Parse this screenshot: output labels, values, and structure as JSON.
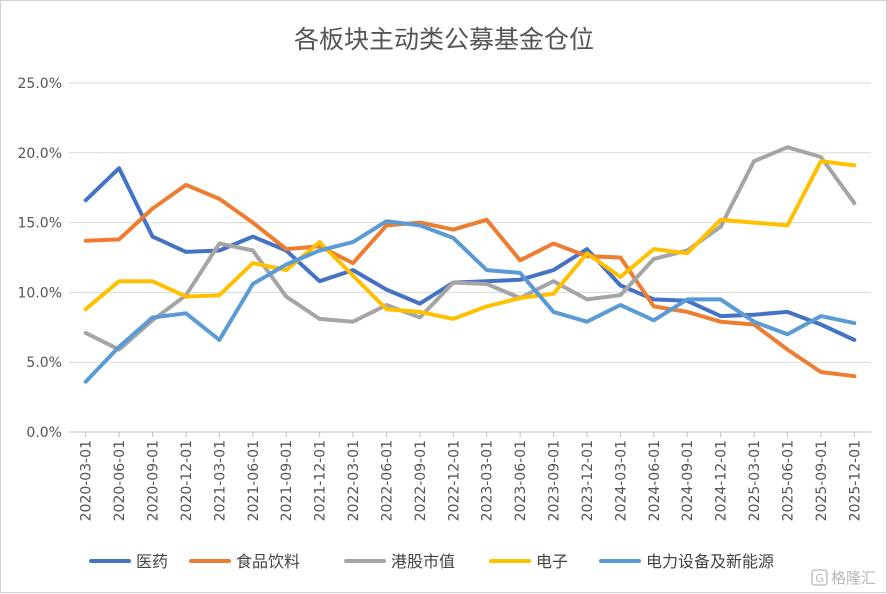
{
  "chart_data": {
    "type": "line",
    "title": "各板块主动类公募基金仓位",
    "xlabel": "",
    "ylabel": "",
    "ylim": [
      0,
      25
    ],
    "yticks": [
      "0.0%",
      "5.0%",
      "10.0%",
      "15.0%",
      "20.0%",
      "25.0%"
    ],
    "grid": true,
    "legend_position": "bottom",
    "x": [
      "2020-03-01",
      "2020-06-01",
      "2020-09-01",
      "2020-12-01",
      "2021-03-01",
      "2021-06-01",
      "2021-09-01",
      "2021-12-01",
      "2022-03-01",
      "2022-06-01",
      "2022-09-01",
      "2022-12-01",
      "2023-03-01",
      "2023-06-01",
      "2023-09-01",
      "2023-12-01",
      "2024-03-01",
      "2024-06-01",
      "2024-09-01",
      "2024-12-01",
      "2025-03-01",
      "2025-06-01",
      "2025-09-01",
      "2025-12-01"
    ],
    "series": [
      {
        "name": "医药",
        "color": "#4472C4",
        "values": [
          16.6,
          18.9,
          14.0,
          12.9,
          13.0,
          14.0,
          13.0,
          10.8,
          11.6,
          10.2,
          9.2,
          10.7,
          10.8,
          10.9,
          11.6,
          13.1,
          10.5,
          9.5,
          9.4,
          8.3,
          8.4,
          8.6,
          7.7,
          6.6
        ]
      },
      {
        "name": "食品饮料",
        "color": "#ED7D31",
        "values": [
          13.7,
          13.8,
          16.0,
          17.7,
          16.7,
          15.0,
          13.1,
          13.3,
          12.1,
          14.8,
          15.0,
          14.5,
          15.2,
          12.3,
          13.5,
          12.6,
          12.5,
          9.0,
          8.6,
          7.9,
          7.7,
          5.9,
          4.3,
          4.0
        ]
      },
      {
        "name": "港股市值",
        "color": "#A5A5A5",
        "values": [
          7.1,
          5.9,
          8.0,
          9.8,
          13.5,
          13.0,
          9.7,
          8.1,
          7.9,
          9.1,
          8.2,
          10.7,
          10.6,
          9.6,
          10.8,
          9.5,
          9.8,
          12.4,
          13.0,
          14.7,
          19.4,
          20.4,
          19.7,
          16.4
        ]
      },
      {
        "name": "电子",
        "color": "#FFC000",
        "values": [
          8.8,
          10.8,
          10.8,
          9.7,
          9.8,
          12.1,
          11.6,
          13.6,
          11.2,
          8.8,
          8.6,
          8.1,
          9.0,
          9.6,
          9.9,
          12.8,
          11.1,
          13.1,
          12.8,
          15.2,
          15.0,
          14.8,
          19.4,
          19.1
        ]
      },
      {
        "name": "电力设备及新能源",
        "color": "#5B9BD5",
        "values": [
          3.6,
          6.1,
          8.2,
          8.5,
          6.6,
          10.6,
          12.0,
          13.0,
          13.6,
          15.1,
          14.8,
          13.9,
          11.6,
          11.4,
          8.6,
          7.9,
          9.1,
          8.0,
          9.5,
          9.5,
          7.9,
          7.0,
          8.3,
          7.8
        ]
      }
    ]
  },
  "watermark": {
    "text": "格隆汇",
    "icon": "g-logo-icon"
  }
}
